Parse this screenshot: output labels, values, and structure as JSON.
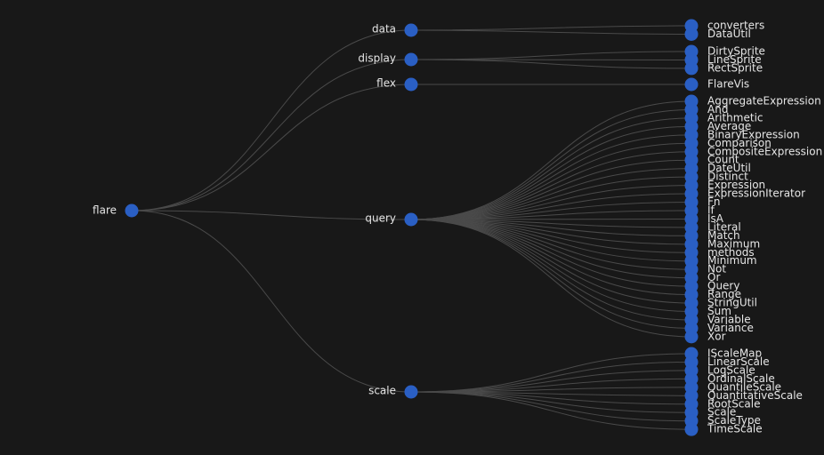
{
  "chart_data": {
    "type": "tree",
    "orientation": "left-to-right",
    "root": {
      "name": "flare",
      "children": [
        {
          "name": "data",
          "children": [
            {
              "name": "converters"
            },
            {
              "name": "DataUtil"
            }
          ]
        },
        {
          "name": "display",
          "children": [
            {
              "name": "DirtySprite"
            },
            {
              "name": "LineSprite"
            },
            {
              "name": "RectSprite"
            }
          ]
        },
        {
          "name": "flex",
          "children": [
            {
              "name": "FlareVis"
            }
          ]
        },
        {
          "name": "query",
          "children": [
            {
              "name": "AggregateExpression"
            },
            {
              "name": "And"
            },
            {
              "name": "Arithmetic"
            },
            {
              "name": "Average"
            },
            {
              "name": "BinaryExpression"
            },
            {
              "name": "Comparison"
            },
            {
              "name": "CompositeExpression"
            },
            {
              "name": "Count"
            },
            {
              "name": "DateUtil"
            },
            {
              "name": "Distinct"
            },
            {
              "name": "Expression"
            },
            {
              "name": "ExpressionIterator"
            },
            {
              "name": "Fn"
            },
            {
              "name": "If"
            },
            {
              "name": "IsA"
            },
            {
              "name": "Literal"
            },
            {
              "name": "Match"
            },
            {
              "name": "Maximum"
            },
            {
              "name": "methods"
            },
            {
              "name": "Minimum"
            },
            {
              "name": "Not"
            },
            {
              "name": "Or"
            },
            {
              "name": "Query"
            },
            {
              "name": "Range"
            },
            {
              "name": "StringUtil"
            },
            {
              "name": "Sum"
            },
            {
              "name": "Variable"
            },
            {
              "name": "Variance"
            },
            {
              "name": "Xor"
            }
          ]
        },
        {
          "name": "scale",
          "children": [
            {
              "name": "IScaleMap"
            },
            {
              "name": "LinearScale"
            },
            {
              "name": "LogScale"
            },
            {
              "name": "OrdinalScale"
            },
            {
              "name": "QuantileScale"
            },
            {
              "name": "QuantitativeScale"
            },
            {
              "name": "RootScale"
            },
            {
              "name": "Scale"
            },
            {
              "name": "ScaleType"
            },
            {
              "name": "TimeScale"
            }
          ]
        }
      ]
    },
    "colors": {
      "background": "#181818",
      "node": "#2a5fc4",
      "link": "#4a4a4a",
      "label": "#e6e6e6"
    }
  }
}
